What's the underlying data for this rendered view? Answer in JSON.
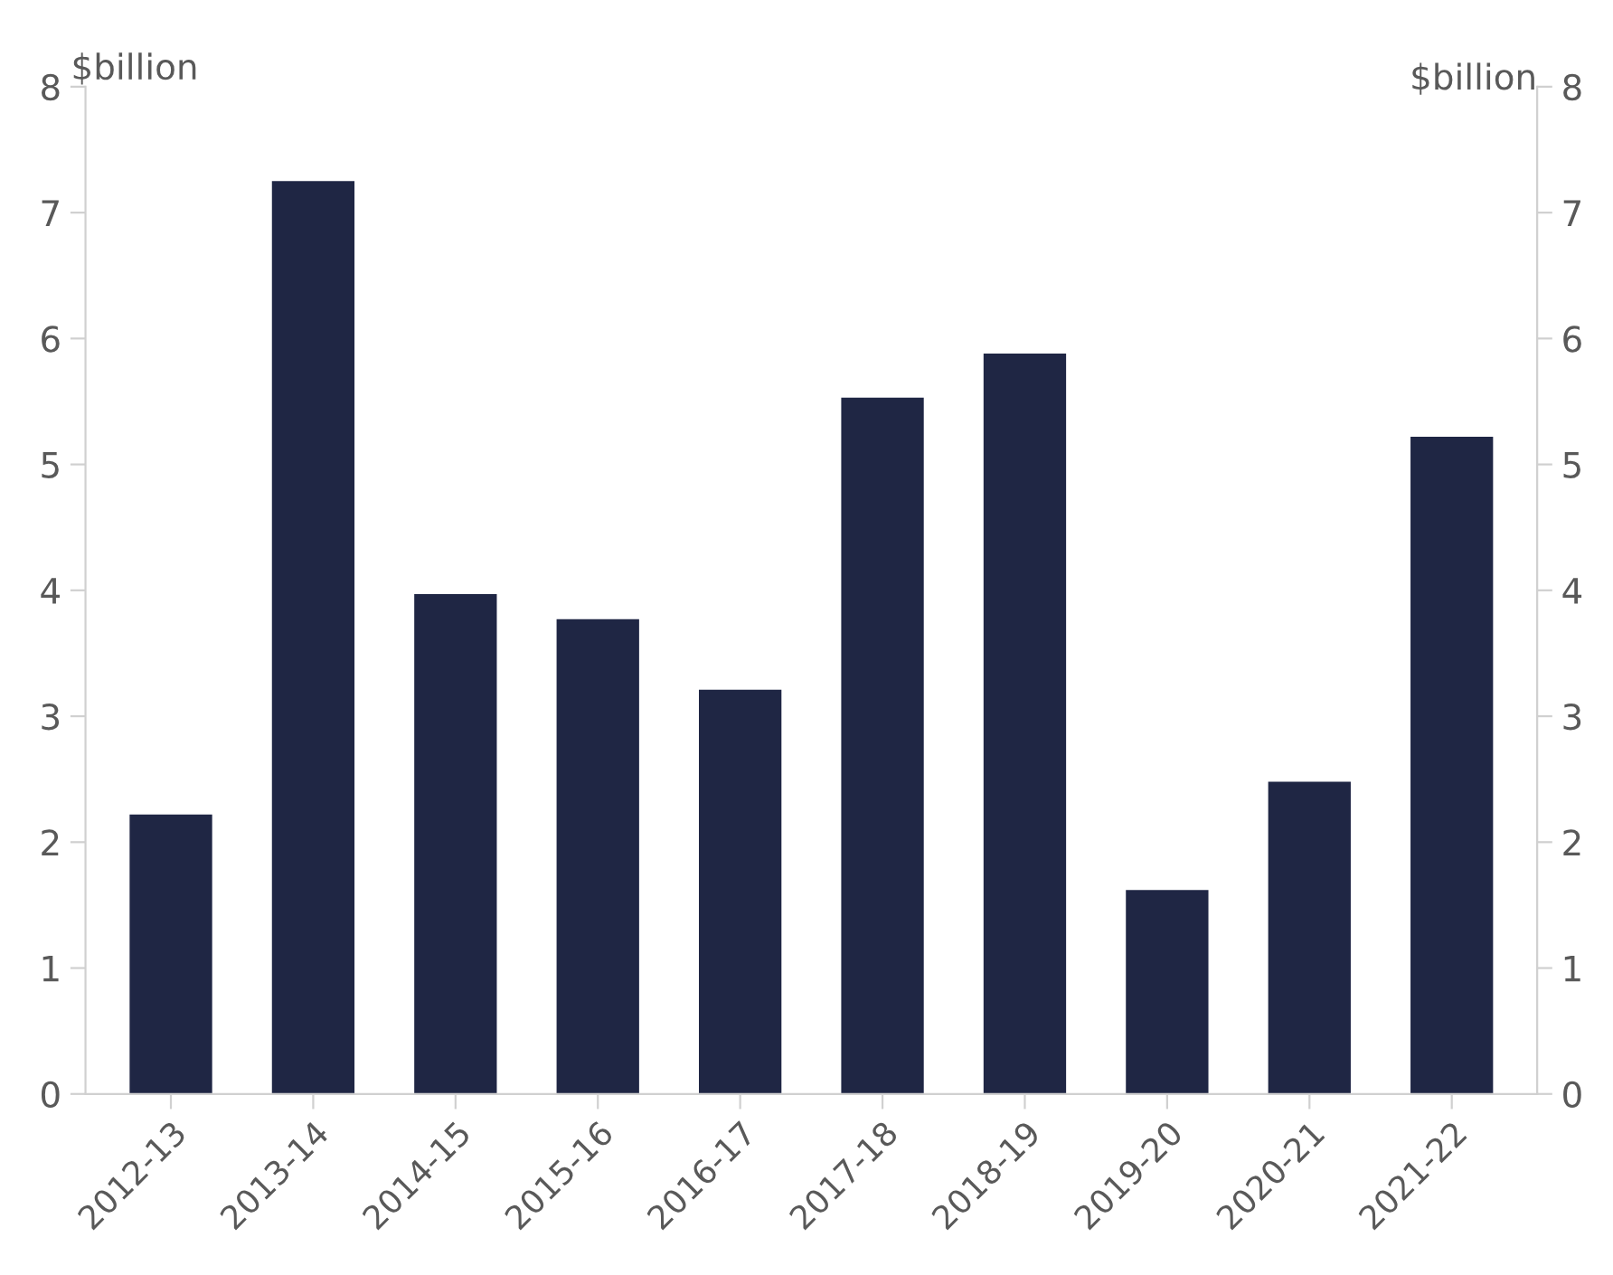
{
  "chart_data": {
    "type": "bar",
    "categories": [
      "2012-13",
      "2013-14",
      "2014-15",
      "2015-16",
      "2016-17",
      "2017-18",
      "2018-19",
      "2019-20",
      "2020-21",
      "2021-22"
    ],
    "values": [
      2.22,
      7.25,
      3.97,
      3.77,
      3.21,
      5.53,
      5.88,
      1.62,
      2.48,
      5.22
    ],
    "color": "#1f2644",
    "ylabel": "$billion",
    "y2label": "$billion",
    "ylim": [
      0,
      8
    ],
    "yticks": [
      0,
      1,
      2,
      3,
      4,
      5,
      6,
      7,
      8
    ],
    "y2lim": [
      0,
      8
    ],
    "y2ticks": [
      0,
      1,
      2,
      3,
      4,
      5,
      6,
      7,
      8
    ],
    "grid": false,
    "legend": false
  }
}
